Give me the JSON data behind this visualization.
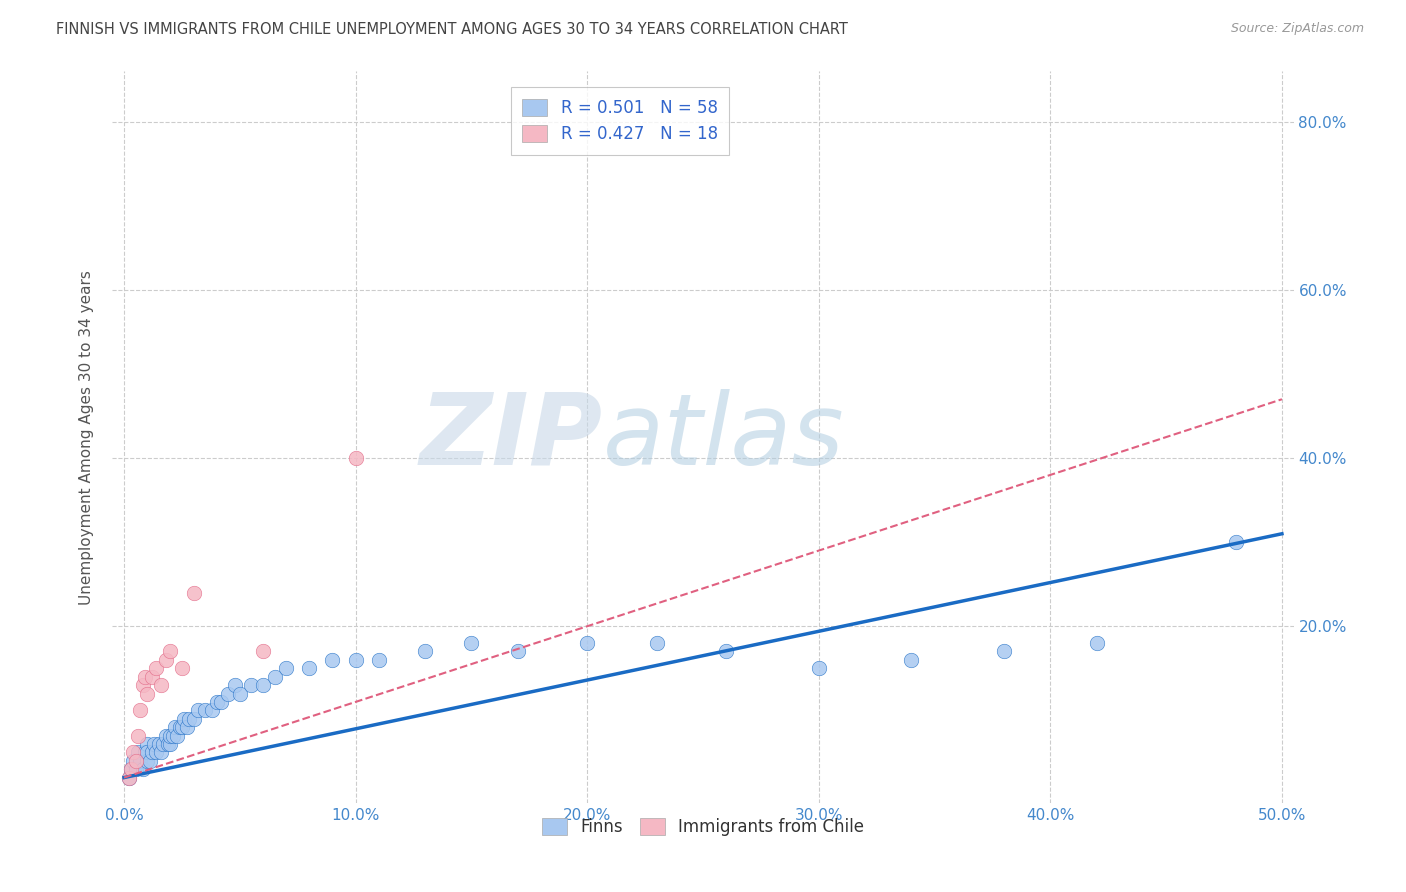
{
  "title": "FINNISH VS IMMIGRANTS FROM CHILE UNEMPLOYMENT AMONG AGES 30 TO 34 YEARS CORRELATION CHART",
  "source": "Source: ZipAtlas.com",
  "ylabel": "Unemployment Among Ages 30 to 34 years",
  "xlim": [
    -0.005,
    0.505
  ],
  "ylim": [
    -0.01,
    0.86
  ],
  "xticks": [
    0.0,
    0.1,
    0.2,
    0.3,
    0.4,
    0.5
  ],
  "yticks": [
    0.2,
    0.4,
    0.6,
    0.8
  ],
  "ytick_labels": [
    "20.0%",
    "40.0%",
    "60.0%",
    "80.0%"
  ],
  "xtick_labels": [
    "0.0%",
    "10.0%",
    "20.0%",
    "30.0%",
    "40.0%",
    "50.0%"
  ],
  "legend_finns_label": "R = 0.501   N = 58",
  "legend_chile_label": "R = 0.427   N = 18",
  "finns_color": "#a8c8f0",
  "finns_line_color": "#1a6bc4",
  "chile_color": "#f5b8c4",
  "chile_line_color": "#e06080",
  "background_color": "#ffffff",
  "grid_color": "#cccccc",
  "title_color": "#444444",
  "axis_label_color": "#555555",
  "tick_color": "#4488cc",
  "source_color": "#999999",
  "finns_line_slope": 0.58,
  "finns_line_intercept": 0.02,
  "chile_line_slope": 0.9,
  "chile_line_intercept": 0.02,
  "finns_x": [
    0.002,
    0.003,
    0.004,
    0.005,
    0.006,
    0.007,
    0.008,
    0.009,
    0.01,
    0.01,
    0.01,
    0.011,
    0.012,
    0.013,
    0.014,
    0.015,
    0.016,
    0.017,
    0.018,
    0.019,
    0.02,
    0.02,
    0.021,
    0.022,
    0.023,
    0.024,
    0.025,
    0.026,
    0.027,
    0.028,
    0.03,
    0.032,
    0.035,
    0.038,
    0.04,
    0.042,
    0.045,
    0.048,
    0.05,
    0.055,
    0.06,
    0.065,
    0.07,
    0.08,
    0.09,
    0.1,
    0.11,
    0.13,
    0.15,
    0.17,
    0.2,
    0.23,
    0.26,
    0.3,
    0.34,
    0.38,
    0.42,
    0.48
  ],
  "finns_y": [
    0.02,
    0.03,
    0.04,
    0.03,
    0.05,
    0.04,
    0.03,
    0.05,
    0.04,
    0.06,
    0.05,
    0.04,
    0.05,
    0.06,
    0.05,
    0.06,
    0.05,
    0.06,
    0.07,
    0.06,
    0.06,
    0.07,
    0.07,
    0.08,
    0.07,
    0.08,
    0.08,
    0.09,
    0.08,
    0.09,
    0.09,
    0.1,
    0.1,
    0.1,
    0.11,
    0.11,
    0.12,
    0.13,
    0.12,
    0.13,
    0.13,
    0.14,
    0.15,
    0.15,
    0.16,
    0.16,
    0.16,
    0.17,
    0.18,
    0.17,
    0.18,
    0.18,
    0.17,
    0.15,
    0.16,
    0.17,
    0.18,
    0.3
  ],
  "chile_x": [
    0.002,
    0.003,
    0.004,
    0.005,
    0.006,
    0.007,
    0.008,
    0.009,
    0.01,
    0.012,
    0.014,
    0.016,
    0.018,
    0.02,
    0.025,
    0.03,
    0.06,
    0.1
  ],
  "chile_y": [
    0.02,
    0.03,
    0.05,
    0.04,
    0.07,
    0.1,
    0.13,
    0.14,
    0.12,
    0.14,
    0.15,
    0.13,
    0.16,
    0.17,
    0.15,
    0.24,
    0.17,
    0.4
  ]
}
